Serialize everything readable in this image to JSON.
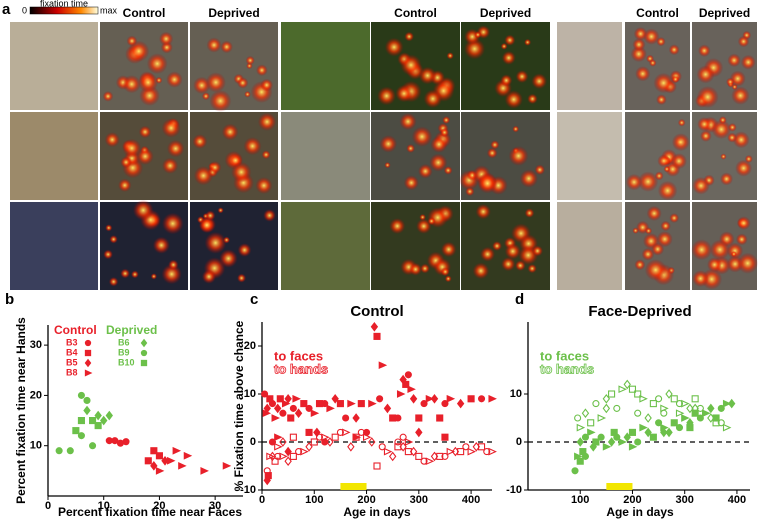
{
  "panel_a": {
    "label": "a",
    "colorbar": {
      "min": "0",
      "title": "fixation time",
      "max": "max"
    },
    "groups": [
      {
        "columns": [
          "Control",
          "Deprived"
        ]
      },
      {
        "columns": [
          "Control",
          "Deprived"
        ]
      },
      {
        "columns": [
          "Control",
          "Deprived"
        ]
      }
    ]
  },
  "chart_data": [
    {
      "type": "scatter",
      "panel": "b",
      "xlabel": "Percent  fixation time near Faces",
      "ylabel": "Percent fixation time near Hands",
      "xlim": [
        0,
        35
      ],
      "ylim": [
        0,
        34
      ],
      "xticks": [
        0,
        10,
        20,
        30
      ],
      "yticks": [
        10,
        20,
        30
      ],
      "groups": [
        {
          "title": "Control",
          "color": "#e8202a",
          "series": [
            {
              "name": "B3",
              "marker": "circle",
              "x": [
                12,
                13,
                11,
                14
              ],
              "y": [
                11,
                10.5,
                11,
                10.8
              ]
            },
            {
              "name": "B4",
              "marker": "square",
              "x": [
                19,
                20,
                18
              ],
              "y": [
                9,
                8,
                7
              ]
            },
            {
              "name": "B5",
              "marker": "diamond",
              "x": [
                19,
                21
              ],
              "y": [
                6,
                7
              ]
            },
            {
              "name": "B8",
              "marker": "triangle",
              "x": [
                22,
                24,
                28,
                32,
                20,
                25,
                23
              ],
              "y": [
                7,
                6,
                5,
                6,
                5,
                8,
                9
              ]
            }
          ]
        },
        {
          "title": "Deprived",
          "color": "#6cc04a",
          "series": [
            {
              "name": "B6",
              "marker": "diamond",
              "x": [
                9,
                10,
                7,
                11
              ],
              "y": [
                16,
                15,
                17,
                16
              ]
            },
            {
              "name": "B9",
              "marker": "circle",
              "x": [
                6,
                8,
                4,
                2,
                6,
                7
              ],
              "y": [
                12,
                10,
                9,
                9,
                20,
                19
              ]
            },
            {
              "name": "B10",
              "marker": "square",
              "x": [
                8,
                9,
                6,
                5
              ],
              "y": [
                15,
                14,
                15,
                13
              ]
            }
          ]
        }
      ]
    },
    {
      "type": "scatter",
      "panel": "c",
      "title": "Control",
      "xlabel": "Age in days",
      "ylabel": "% Fixation time above chance",
      "xlim": [
        0,
        440
      ],
      "ylim": [
        -10,
        25
      ],
      "xticks": [
        0,
        100,
        200,
        300,
        400
      ],
      "yticks": [
        -10,
        0,
        10,
        20
      ],
      "zero_line": true,
      "highlight_x": [
        150,
        200
      ],
      "highlight_color": "#f2e600",
      "series": [
        {
          "name": "to faces",
          "color": "#e8202a",
          "filled": true,
          "x": [
            5,
            8,
            10,
            15,
            20,
            25,
            30,
            35,
            40,
            45,
            50,
            55,
            60,
            65,
            70,
            80,
            90,
            100,
            105,
            110,
            120,
            130,
            140,
            150,
            160,
            170,
            180,
            190,
            200,
            210,
            215,
            220,
            225,
            230,
            240,
            250,
            260,
            265,
            270,
            275,
            280,
            285,
            290,
            300,
            310,
            320,
            330,
            340,
            350,
            360,
            380,
            400,
            420,
            440,
            10,
            12,
            20,
            30,
            50,
            90,
            120,
            180,
            300,
            350
          ],
          "y": [
            10,
            6,
            7,
            9,
            8,
            5,
            7,
            9,
            6,
            8,
            9,
            5,
            7,
            9,
            6,
            8,
            7,
            6,
            2,
            8,
            8,
            7,
            9,
            8,
            5,
            8,
            5,
            8,
            2,
            8,
            24,
            22,
            9,
            16,
            7,
            5,
            5,
            10,
            13,
            12,
            14,
            11,
            9,
            5,
            8,
            9,
            9,
            5,
            8,
            9,
            8,
            9,
            9,
            9,
            -8,
            -7,
            0,
            1,
            -2,
            2,
            0,
            1,
            2,
            1
          ]
        },
        {
          "name": "to hands",
          "color": "#e8202a",
          "filled": false,
          "x": [
            10,
            15,
            20,
            25,
            30,
            40,
            50,
            60,
            70,
            80,
            90,
            100,
            110,
            120,
            130,
            140,
            150,
            160,
            170,
            180,
            190,
            200,
            210,
            220,
            230,
            240,
            250,
            260,
            270,
            280,
            290,
            300,
            310,
            320,
            330,
            340,
            350,
            360,
            370,
            380,
            390,
            400,
            410,
            420,
            430,
            440,
            270,
            280,
            260,
            30,
            40,
            60
          ],
          "y": [
            -6,
            -3,
            -3,
            -4,
            -3,
            -3,
            -4,
            -3,
            -2,
            -2,
            -1,
            0,
            1,
            1,
            0,
            1,
            2,
            2,
            -1,
            1,
            2,
            1,
            0,
            -5,
            -1,
            -2,
            -3,
            -1,
            1,
            0,
            -2,
            -3,
            -4,
            -4,
            -3,
            -3,
            -3,
            -2,
            -2,
            -2,
            -1,
            -2,
            -1,
            -1,
            -2,
            -2,
            -1,
            -2,
            0,
            -1,
            0,
            1
          ]
        }
      ]
    },
    {
      "type": "scatter",
      "panel": "d",
      "title": "Face-Deprived",
      "xlabel": "Age in days",
      "xlim": [
        0,
        425
      ],
      "ylim": [
        -10,
        25
      ],
      "xticks": [
        100,
        200,
        300,
        400
      ],
      "yticks": [
        -10,
        0,
        10
      ],
      "zero_line": true,
      "highlight_x": [
        150,
        200
      ],
      "highlight_color": "#f2e600",
      "series": [
        {
          "name": "to faces",
          "color": "#6cc04a",
          "filled": true,
          "x": [
            90,
            95,
            100,
            105,
            110,
            120,
            125,
            130,
            140,
            150,
            160,
            165,
            170,
            180,
            190,
            200,
            210,
            220,
            230,
            240,
            250,
            260,
            270,
            280,
            290,
            300,
            310,
            320,
            330,
            340,
            350,
            360,
            370,
            380,
            390,
            100,
            110,
            200,
            260,
            310
          ],
          "y": [
            -6,
            -3,
            0,
            -2,
            1,
            2,
            -1,
            0,
            1,
            -1,
            0,
            2,
            1,
            0,
            1,
            2,
            0,
            3,
            2,
            1,
            4,
            3,
            2,
            4,
            3,
            5,
            4,
            6,
            5,
            6,
            7,
            5,
            7,
            8,
            8,
            -4,
            -3,
            -1,
            2,
            3
          ]
        },
        {
          "name": "to hands",
          "color": "#6cc04a",
          "filled": false,
          "x": [
            95,
            100,
            110,
            120,
            130,
            140,
            150,
            160,
            170,
            180,
            190,
            200,
            210,
            220,
            230,
            240,
            250,
            260,
            270,
            280,
            290,
            300,
            310,
            320,
            330,
            340,
            350,
            360,
            370,
            380,
            150,
            210,
            260,
            290,
            320
          ],
          "y": [
            5,
            3,
            6,
            4,
            8,
            5,
            9,
            10,
            7,
            11,
            12,
            11,
            6,
            9,
            5,
            8,
            9,
            7,
            10,
            9,
            8,
            8,
            7,
            9,
            7,
            6,
            5,
            4,
            4,
            3,
            7,
            10,
            6,
            6,
            7
          ]
        }
      ]
    }
  ]
}
